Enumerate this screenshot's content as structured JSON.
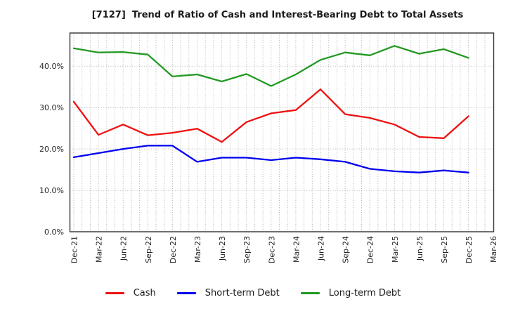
{
  "chart_data": {
    "type": "line",
    "title": "[7127]  Trend of Ratio of Cash and Interest-Bearing Debt to Total Assets",
    "categories": [
      "Dec-21",
      "Mar-22",
      "Jun-22",
      "Sep-22",
      "Dec-22",
      "Mar-23",
      "Jun-23",
      "Sep-23",
      "Dec-23",
      "Mar-24",
      "Jun-24",
      "Sep-24",
      "Dec-24",
      "Mar-25",
      "Jun-25",
      "Sep-25",
      "Dec-25",
      "Mar-26"
    ],
    "series": [
      {
        "name": "Cash",
        "color": "#ee1111",
        "values": [
          31.4,
          23.4,
          25.9,
          23.3,
          23.9,
          24.9,
          21.7,
          26.5,
          28.6,
          29.4,
          34.4,
          28.4,
          27.5,
          25.9,
          22.9,
          22.6,
          27.9
        ]
      },
      {
        "name": "Short-term Debt",
        "color": "#0000ee",
        "values": [
          18.0,
          19.0,
          20.0,
          20.8,
          20.8,
          16.9,
          17.9,
          17.9,
          17.3,
          17.9,
          17.5,
          16.9,
          15.2,
          14.6,
          14.3,
          14.8,
          14.3
        ]
      },
      {
        "name": "Long-term Debt",
        "color": "#229922",
        "values": [
          44.3,
          43.3,
          43.4,
          42.8,
          37.5,
          38.0,
          36.3,
          38.1,
          35.2,
          38.0,
          41.5,
          43.3,
          42.6,
          44.9,
          43.0,
          44.1,
          42.0
        ]
      }
    ],
    "y_tick_labels": [
      "0.0%",
      "10.0%",
      "20.0%",
      "30.0%",
      "40.0%"
    ],
    "y_tick_values": [
      0,
      10,
      20,
      30,
      40
    ],
    "ylim": [
      0,
      48
    ],
    "x_minor_divisions_per_interval": 3,
    "grid": true,
    "legend_position": "bottom",
    "xlabel": "",
    "ylabel": ""
  }
}
